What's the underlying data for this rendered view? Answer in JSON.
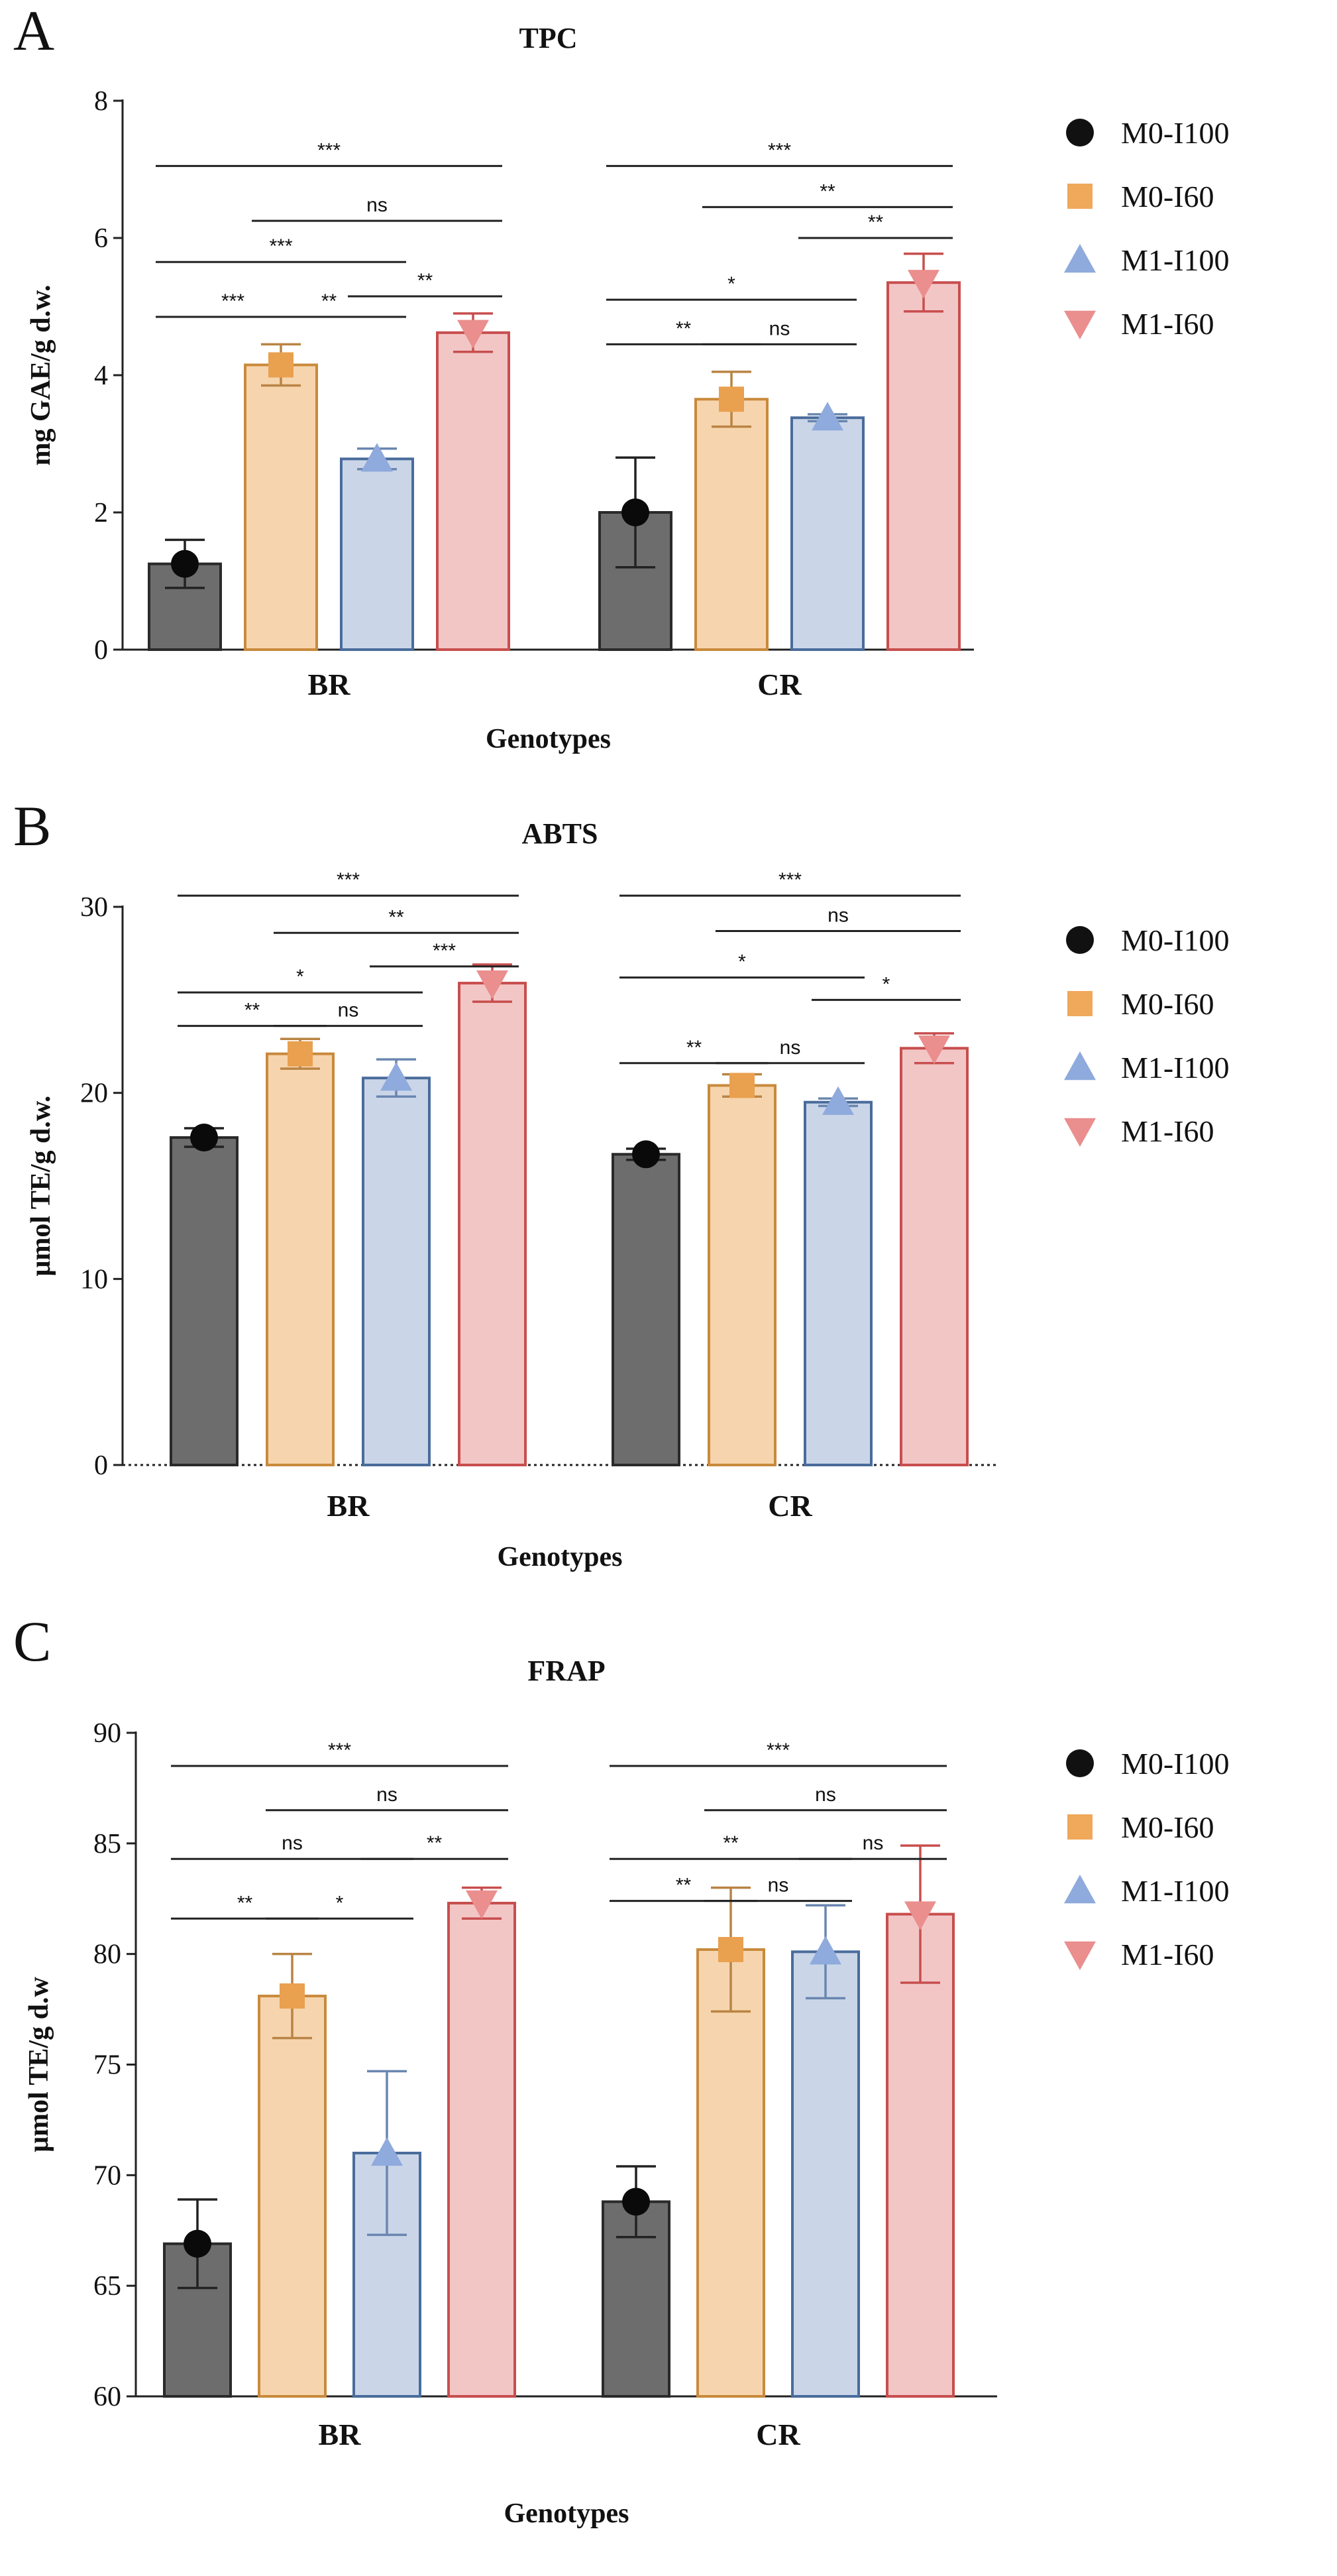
{
  "figure": {
    "colors": {
      "axis": "#222222",
      "text": "#111111",
      "errorbar": "#222222"
    }
  },
  "legend_entries": [
    {
      "label": "M0-I100",
      "marker": "circle",
      "color": "#111111"
    },
    {
      "label": "M0-I60",
      "marker": "square",
      "color": "#F0A85A"
    },
    {
      "label": "M1-I100",
      "marker": "triangle-up",
      "color": "#8FAADC"
    },
    {
      "label": "M1-I60",
      "marker": "triangle-down",
      "color": "#EA8E8E"
    }
  ],
  "series_styles": [
    {
      "name": "M0-I100",
      "fill": "#6D6D6D",
      "stroke": "#2A2A2A",
      "marker_color": "#0A0A0A",
      "errbar": "#222222"
    },
    {
      "name": "M0-I60",
      "fill": "#F6D5AE",
      "stroke": "#C98A3C",
      "marker_color": "#E9A04F",
      "errbar": "#B98444"
    },
    {
      "name": "M1-I100",
      "fill": "#CAD6E8",
      "stroke": "#4A6C9C",
      "marker_color": "#8FAADC",
      "errbar": "#6A86B0"
    },
    {
      "name": "M1-I60",
      "fill": "#F3C6C6",
      "stroke": "#C84E4E",
      "marker_color": "#EA8E8E",
      "errbar": "#C84E4E"
    }
  ],
  "chart_data": [
    {
      "panel": "A",
      "type": "bar",
      "title": "TPC",
      "xlabel": "Genotypes",
      "ylabel": "mg GAE/g d.w.",
      "ylim": [
        0,
        8
      ],
      "yticks": [
        0,
        2,
        4,
        6,
        8
      ],
      "categories": [
        "BR",
        "CR"
      ],
      "series": [
        {
          "name": "M0-I100",
          "values": [
            1.25,
            2.0
          ],
          "errors": [
            0.35,
            0.8
          ]
        },
        {
          "name": "M0-I60",
          "values": [
            4.15,
            3.65
          ],
          "errors": [
            0.3,
            0.4
          ]
        },
        {
          "name": "M1-I100",
          "values": [
            2.78,
            3.38
          ],
          "errors": [
            0.15,
            0.05
          ]
        },
        {
          "name": "M1-I60",
          "values": [
            4.62,
            5.35
          ],
          "errors": [
            0.28,
            0.42
          ]
        }
      ],
      "significance": [
        {
          "cat": 0,
          "from": 0,
          "to": 3,
          "label": "***",
          "level": 7.05
        },
        {
          "cat": 0,
          "from": 1,
          "to": 3,
          "label": "ns",
          "level": 6.25
        },
        {
          "cat": 0,
          "from": 0,
          "to": 2,
          "label": "***",
          "level": 5.65
        },
        {
          "cat": 0,
          "from": 2,
          "to": 3,
          "label": "**",
          "level": 5.15
        },
        {
          "cat": 0,
          "from": 0,
          "to": 1,
          "label": "***",
          "level": 4.85
        },
        {
          "cat": 0,
          "from": 1,
          "to": 2,
          "label": "**",
          "level": 4.85
        },
        {
          "cat": 1,
          "from": 0,
          "to": 3,
          "label": "***",
          "level": 7.05
        },
        {
          "cat": 1,
          "from": 1,
          "to": 3,
          "label": "**",
          "level": 6.45
        },
        {
          "cat": 1,
          "from": 2,
          "to": 3,
          "label": "**",
          "level": 6.0
        },
        {
          "cat": 1,
          "from": 0,
          "to": 2,
          "label": "*",
          "level": 5.1
        },
        {
          "cat": 1,
          "from": 0,
          "to": 1,
          "label": "**",
          "level": 4.45
        },
        {
          "cat": 1,
          "from": 1,
          "to": 2,
          "label": "ns",
          "level": 4.45
        }
      ]
    },
    {
      "panel": "B",
      "type": "bar",
      "title": "ABTS",
      "xlabel": "Genotypes",
      "ylabel": "μmol TE/g d.w.",
      "ylim": [
        0,
        30
      ],
      "yticks": [
        0,
        10,
        20,
        30
      ],
      "categories": [
        "BR",
        "CR"
      ],
      "series": [
        {
          "name": "M0-I100",
          "values": [
            17.6,
            16.7
          ],
          "errors": [
            0.5,
            0.3
          ]
        },
        {
          "name": "M0-I60",
          "values": [
            22.1,
            20.4
          ],
          "errors": [
            0.8,
            0.6
          ]
        },
        {
          "name": "M1-I100",
          "values": [
            20.8,
            19.5
          ],
          "errors": [
            1.0,
            0.2
          ]
        },
        {
          "name": "M1-I60",
          "values": [
            25.9,
            22.4
          ],
          "errors": [
            1.0,
            0.8
          ]
        }
      ],
      "significance": [
        {
          "cat": 0,
          "from": 0,
          "to": 3,
          "label": "***",
          "level": 30.6
        },
        {
          "cat": 0,
          "from": 1,
          "to": 3,
          "label": "**",
          "level": 28.6
        },
        {
          "cat": 0,
          "from": 2,
          "to": 3,
          "label": "***",
          "level": 26.8
        },
        {
          "cat": 0,
          "from": 0,
          "to": 2,
          "label": "*",
          "level": 25.4
        },
        {
          "cat": 0,
          "from": 0,
          "to": 1,
          "label": "**",
          "level": 23.6
        },
        {
          "cat": 0,
          "from": 1,
          "to": 2,
          "label": "ns",
          "level": 23.6
        },
        {
          "cat": 1,
          "from": 0,
          "to": 3,
          "label": "***",
          "level": 30.6
        },
        {
          "cat": 1,
          "from": 1,
          "to": 3,
          "label": "ns",
          "level": 28.7
        },
        {
          "cat": 1,
          "from": 0,
          "to": 2,
          "label": "*",
          "level": 26.2
        },
        {
          "cat": 1,
          "from": 2,
          "to": 3,
          "label": "*",
          "level": 25.0
        },
        {
          "cat": 1,
          "from": 0,
          "to": 1,
          "label": "**",
          "level": 21.6
        },
        {
          "cat": 1,
          "from": 1,
          "to": 2,
          "label": "ns",
          "level": 21.6
        }
      ]
    },
    {
      "panel": "C",
      "type": "bar",
      "title": "FRAP",
      "xlabel": "Genotypes",
      "ylabel": "μmol TE/g d.w",
      "ylim": [
        60,
        90
      ],
      "yticks": [
        60,
        65,
        70,
        75,
        80,
        85,
        90
      ],
      "categories": [
        "BR",
        "CR"
      ],
      "series": [
        {
          "name": "M0-I100",
          "values": [
            66.9,
            68.8
          ],
          "errors": [
            2.0,
            1.6
          ]
        },
        {
          "name": "M0-I60",
          "values": [
            78.1,
            80.2
          ],
          "errors": [
            1.9,
            2.8
          ]
        },
        {
          "name": "M1-I100",
          "values": [
            71.0,
            80.1
          ],
          "errors": [
            3.7,
            2.1
          ]
        },
        {
          "name": "M1-I60",
          "values": [
            82.3,
            81.8
          ],
          "errors": [
            0.7,
            3.1
          ]
        }
      ],
      "significance": [
        {
          "cat": 0,
          "from": 0,
          "to": 3,
          "label": "***",
          "level": 88.5
        },
        {
          "cat": 0,
          "from": 1,
          "to": 3,
          "label": "ns",
          "level": 86.5
        },
        {
          "cat": 0,
          "from": 0,
          "to": 2,
          "label": "ns",
          "level": 84.3
        },
        {
          "cat": 0,
          "from": 2,
          "to": 3,
          "label": "**",
          "level": 84.3
        },
        {
          "cat": 0,
          "from": 0,
          "to": 1,
          "label": "**",
          "level": 81.6
        },
        {
          "cat": 0,
          "from": 1,
          "to": 2,
          "label": "*",
          "level": 81.6
        },
        {
          "cat": 1,
          "from": 0,
          "to": 3,
          "label": "***",
          "level": 88.5
        },
        {
          "cat": 1,
          "from": 1,
          "to": 3,
          "label": "ns",
          "level": 86.5
        },
        {
          "cat": 1,
          "from": 0,
          "to": 2,
          "label": "**",
          "level": 84.3
        },
        {
          "cat": 1,
          "from": 2,
          "to": 3,
          "label": "ns",
          "level": 84.3
        },
        {
          "cat": 1,
          "from": 0,
          "to": 1,
          "label": "**",
          "level": 82.4
        },
        {
          "cat": 1,
          "from": 1,
          "to": 2,
          "label": "ns",
          "level": 82.4
        }
      ]
    }
  ]
}
